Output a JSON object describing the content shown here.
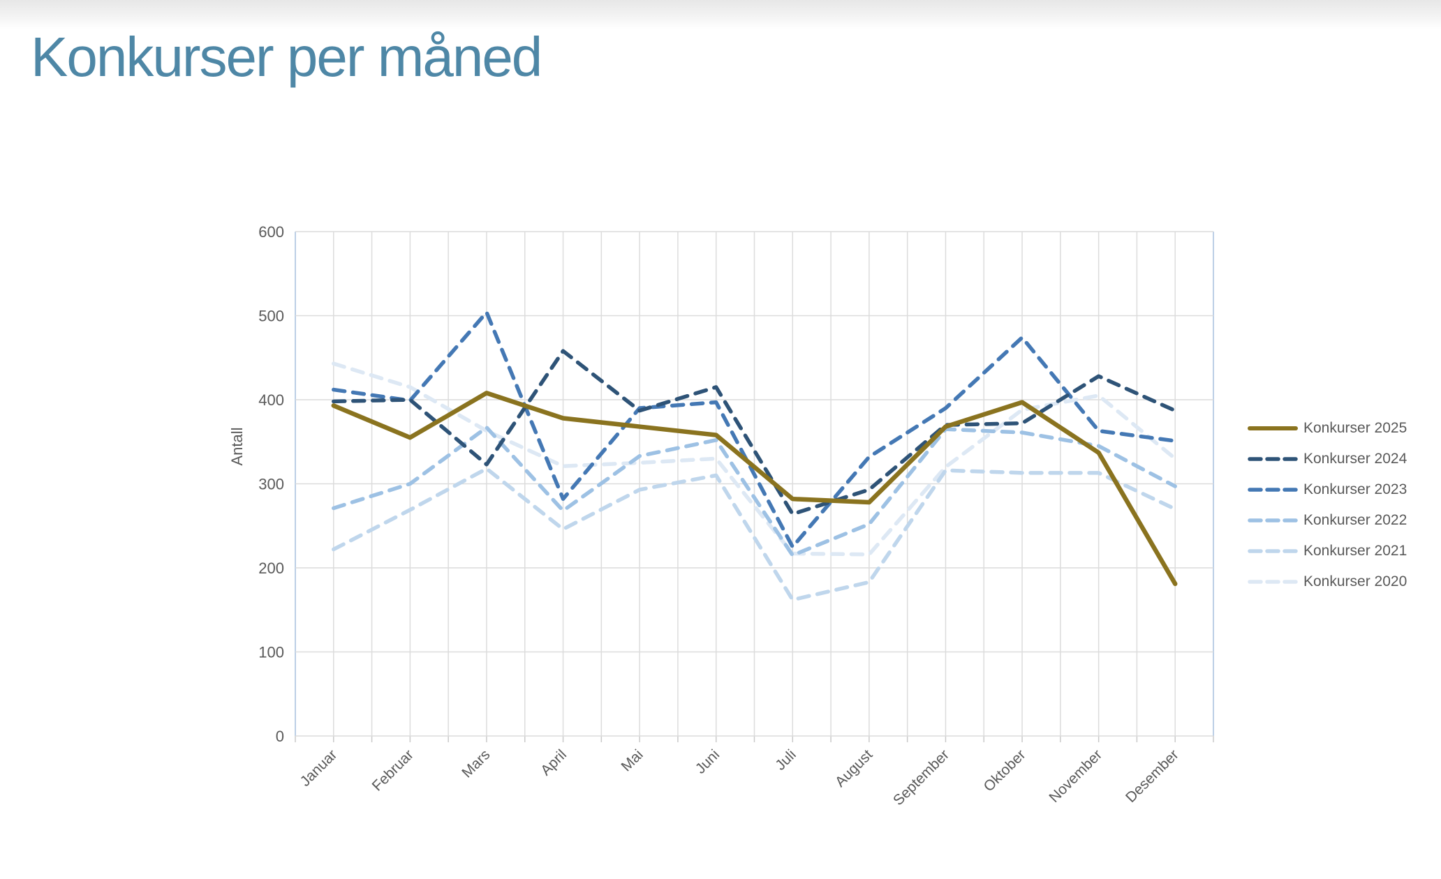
{
  "page": {
    "title": "Konkurser per måned",
    "title_color": "#4e87a6",
    "background": "#ffffff",
    "legend_text_color": "#595959"
  },
  "chart_data": {
    "type": "line",
    "title": "Konkurser per måned",
    "xlabel": "",
    "ylabel": "Antall",
    "ylim": [
      0,
      600
    ],
    "ytick_interval": 100,
    "ytick_labels": [
      "0",
      "100",
      "200",
      "300",
      "400",
      "500",
      "600"
    ],
    "grid": true,
    "legend_position": "right",
    "axis_text_color": "#595959",
    "gridline_color": "#dcdcdc",
    "axis_line_color": "#bccfe6",
    "tick_color": "#c9c9c9",
    "categories": [
      "Januar",
      "Februar",
      "Mars",
      "April",
      "Mai",
      "Juni",
      "Juli",
      "August",
      "September",
      "Oktober",
      "November",
      "Desember"
    ],
    "series": [
      {
        "name": "Konkurser 2025",
        "color": "#8a731f",
        "style": "solid",
        "values": [
          393,
          355,
          408,
          378,
          368,
          358,
          282,
          278,
          368,
          397,
          337,
          181
        ]
      },
      {
        "name": "Konkurser 2024",
        "color": "#2e5377",
        "style": "dashed",
        "values": [
          398,
          400,
          323,
          458,
          387,
          415,
          264,
          293,
          370,
          372,
          428,
          387
        ]
      },
      {
        "name": "Konkurser 2023",
        "color": "#4478b4",
        "style": "dashed",
        "values": [
          412,
          399,
          504,
          282,
          390,
          397,
          225,
          332,
          390,
          474,
          363,
          351
        ]
      },
      {
        "name": "Konkurser 2022",
        "color": "#9dc1e4",
        "style": "dashed",
        "values": [
          271,
          300,
          367,
          268,
          333,
          352,
          215,
          252,
          365,
          361,
          345,
          297
        ]
      },
      {
        "name": "Konkurser 2021",
        "color": "#bfd6ec",
        "style": "dashed",
        "values": [
          222,
          269,
          318,
          246,
          293,
          310,
          162,
          183,
          316,
          313,
          313,
          270
        ]
      },
      {
        "name": "Konkurser 2020",
        "color": "#dde8f4",
        "style": "dashed",
        "values": [
          443,
          415,
          363,
          321,
          325,
          330,
          217,
          216,
          320,
          388,
          405,
          330
        ]
      }
    ]
  }
}
